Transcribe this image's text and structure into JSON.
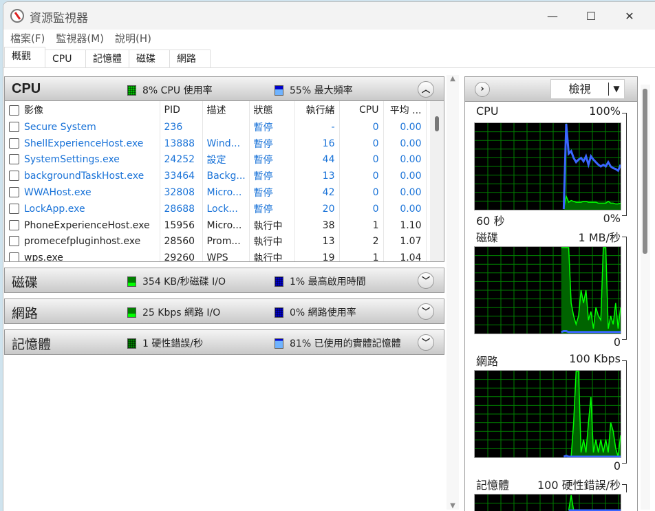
{
  "window": {
    "title": "資源監視器",
    "controls": {
      "minimize": "—",
      "maximize": "☐",
      "close": "✕"
    }
  },
  "menu": [
    "檔案(F)",
    "監視器(M)",
    "說明(H)"
  ],
  "tabs": [
    {
      "label": "概觀",
      "active": true
    },
    {
      "label": "CPU"
    },
    {
      "label": "記憶體"
    },
    {
      "label": "磁碟"
    },
    {
      "label": "網路"
    }
  ],
  "colors": {
    "green": "#00c000",
    "blue": "#0000cc",
    "lightblue": "#6fb3ff",
    "link": "#1a73d8",
    "grid": "#008000"
  },
  "cpu_section": {
    "title": "CPU",
    "stat1": "8% CPU 使用率",
    "stat2": "55% 最大頻率",
    "columns": [
      "影像",
      "PID",
      "描述",
      "狀態",
      "執行緒",
      "CPU",
      "平均 ..."
    ],
    "rows": [
      {
        "image": "Secure System",
        "pid": "236",
        "desc": "",
        "status": "暫停",
        "threads": "-",
        "cpu": "0",
        "avg": "0.00",
        "suspended": true
      },
      {
        "image": "ShellExperienceHost.exe",
        "pid": "13888",
        "desc": "Wind...",
        "status": "暫停",
        "threads": "16",
        "cpu": "0",
        "avg": "0.00",
        "suspended": true
      },
      {
        "image": "SystemSettings.exe",
        "pid": "24252",
        "desc": "設定",
        "status": "暫停",
        "threads": "44",
        "cpu": "0",
        "avg": "0.00",
        "suspended": true
      },
      {
        "image": "backgroundTaskHost.exe",
        "pid": "33464",
        "desc": "Backg...",
        "status": "暫停",
        "threads": "13",
        "cpu": "0",
        "avg": "0.00",
        "suspended": true
      },
      {
        "image": "WWAHost.exe",
        "pid": "32808",
        "desc": "Micro...",
        "status": "暫停",
        "threads": "42",
        "cpu": "0",
        "avg": "0.00",
        "suspended": true
      },
      {
        "image": "LockApp.exe",
        "pid": "28688",
        "desc": "Lock...",
        "status": "暫停",
        "threads": "20",
        "cpu": "0",
        "avg": "0.00",
        "suspended": true
      },
      {
        "image": "PhoneExperienceHost.exe",
        "pid": "15956",
        "desc": "Micro...",
        "status": "執行中",
        "threads": "38",
        "cpu": "1",
        "avg": "1.10",
        "suspended": false
      },
      {
        "image": "promecefpluginhost.exe",
        "pid": "28560",
        "desc": "Prom...",
        "status": "執行中",
        "threads": "13",
        "cpu": "2",
        "avg": "1.07",
        "suspended": false
      },
      {
        "image": "wps.exe",
        "pid": "29260",
        "desc": "WPS",
        "status": "執行中",
        "threads": "19",
        "cpu": "1",
        "avg": "1.04",
        "suspended": false
      }
    ]
  },
  "disk_section": {
    "title": "磁碟",
    "stat1": "354 KB/秒磁碟 I/O",
    "stat2": "1% 最高啟用時間"
  },
  "network_section": {
    "title": "網路",
    "stat1": "25 Kbps 網路 I/O",
    "stat2": "0% 網路使用率"
  },
  "memory_section": {
    "title": "記憶體",
    "stat1": "1 硬性錯誤/秒",
    "stat2": "81% 已使用的實體記憶體"
  },
  "right_panel": {
    "view_label": "檢視",
    "graphs": [
      {
        "name": "CPU",
        "max": "100%",
        "time": "60 秒",
        "min": "0%",
        "blue": [
          0,
          100,
          65,
          68,
          60,
          55,
          58,
          60,
          56,
          62,
          52,
          62,
          58,
          55,
          52,
          50,
          52,
          50,
          55,
          50,
          48,
          47,
          45,
          52
        ],
        "green": [
          0,
          15,
          8,
          10,
          9,
          8,
          8,
          8,
          9,
          9,
          8,
          8,
          8,
          8,
          7,
          7,
          7,
          7,
          9,
          7,
          7,
          6,
          6,
          7
        ]
      },
      {
        "name": "磁碟",
        "max": "1 MB/秒",
        "min": "0",
        "blue": [
          1,
          2,
          2,
          1,
          1,
          1,
          1,
          1,
          1,
          1,
          1,
          1,
          1,
          1,
          1,
          1,
          1,
          1,
          1,
          1,
          1,
          1,
          1,
          1,
          1
        ],
        "green": [
          100,
          100,
          100,
          100,
          35,
          20,
          10,
          20,
          50,
          35,
          50,
          15,
          25,
          5,
          30,
          20,
          15,
          100,
          100,
          5,
          20,
          10,
          35,
          5,
          30
        ]
      },
      {
        "name": "網路",
        "max": "100 Kbps",
        "min": "0",
        "blue": [
          0,
          1,
          0,
          0,
          0,
          0,
          0,
          0,
          0,
          0,
          0,
          0,
          0,
          0,
          0,
          0,
          0,
          0,
          0,
          0,
          0,
          0,
          0,
          0
        ],
        "green": [
          0,
          40,
          100,
          100,
          5,
          20,
          5,
          40,
          70,
          5,
          20,
          5,
          20,
          5,
          20,
          5,
          40,
          30,
          10,
          0,
          25
        ]
      },
      {
        "name": "記憶體",
        "max": "100 硬性錯誤/秒",
        "min": "",
        "blue": [
          80,
          80,
          80,
          80,
          80,
          80,
          80,
          80,
          80,
          80,
          80,
          80,
          80,
          80,
          80,
          80,
          80,
          80,
          80,
          80,
          80,
          80
        ],
        "green": [
          0,
          100,
          0,
          0,
          0,
          0,
          0,
          0,
          0,
          0,
          0,
          0,
          0,
          0,
          0,
          0,
          0,
          0,
          0,
          0,
          0,
          0
        ]
      }
    ]
  }
}
